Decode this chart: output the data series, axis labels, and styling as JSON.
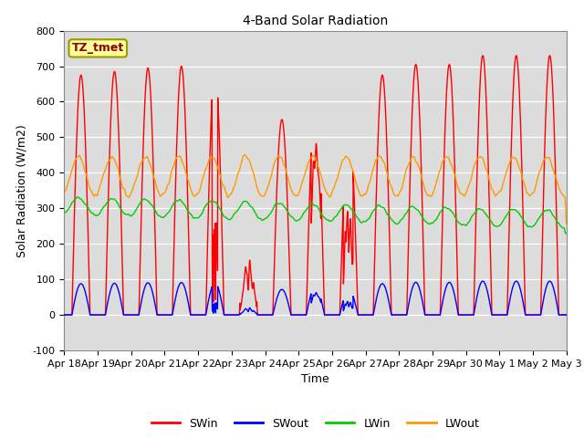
{
  "title": "4-Band Solar Radiation",
  "xlabel": "Time",
  "ylabel": "Solar Radiation (W/m2)",
  "ylim": [
    -100,
    800
  ],
  "yticks": [
    -100,
    0,
    100,
    200,
    300,
    400,
    500,
    600,
    700,
    800
  ],
  "xtick_labels": [
    "Apr 18",
    "Apr 19",
    "Apr 20",
    "Apr 21",
    "Apr 22",
    "Apr 23",
    "Apr 24",
    "Apr 25",
    "Apr 26",
    "Apr 27",
    "Apr 28",
    "Apr 29",
    "Apr 30",
    "May 1",
    "May 2",
    "May 3"
  ],
  "colors": {
    "SWin": "#ff0000",
    "SWout": "#0000ff",
    "LWin": "#00cc00",
    "LWout": "#ff9900"
  },
  "annotation_text": "TZ_tmet",
  "annotation_color": "#8b0000",
  "annotation_bg": "#ffff99",
  "annotation_edge": "#999900",
  "plot_bg": "#dcdcdc",
  "linewidth": 1.0,
  "title_fontsize": 10,
  "axis_fontsize": 8,
  "label_fontsize": 9
}
